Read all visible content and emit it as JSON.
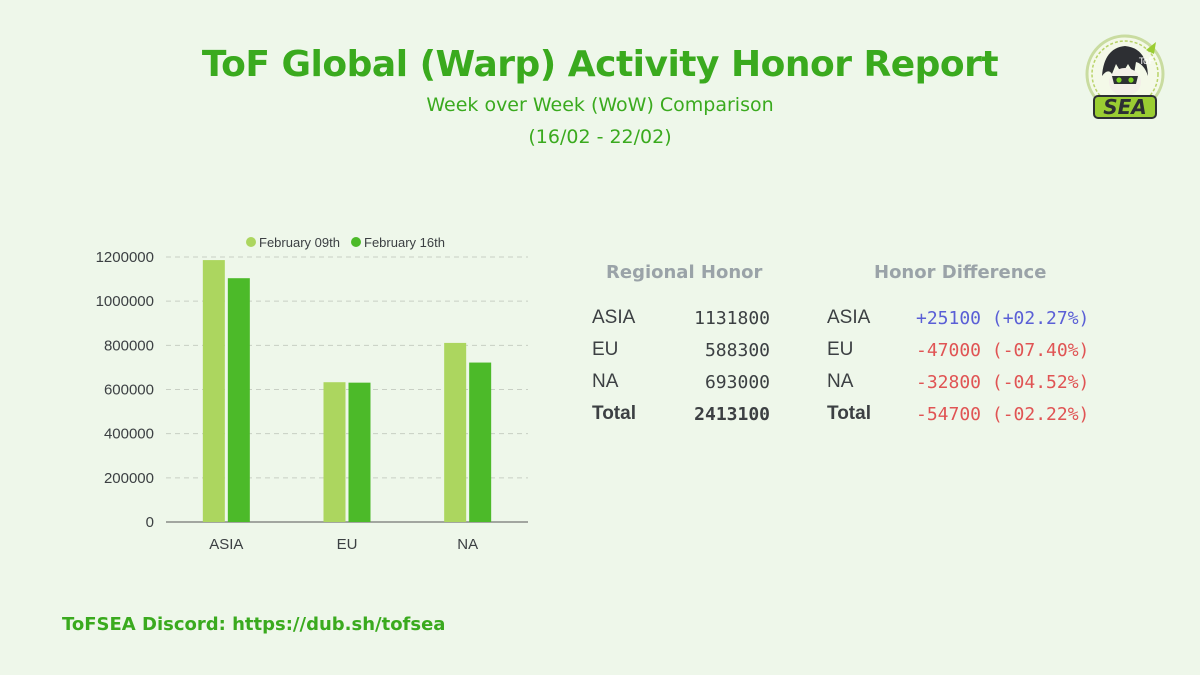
{
  "header": {
    "title": "ToF Global (Warp) Activity Honor Report",
    "subtitle": "Week over Week (WoW) Comparison",
    "date_range": "(16/02 - 22/02)"
  },
  "logo": {
    "text": "SEA",
    "badge_text": "ToF"
  },
  "chart_data": {
    "type": "bar",
    "categories": [
      "ASIA",
      "EU",
      "NA"
    ],
    "series": [
      {
        "name": "February 09th",
        "color": "#acd65f",
        "values": [
          1186000,
          633000,
          811000
        ]
      },
      {
        "name": "February 16th",
        "color": "#4cba29",
        "values": [
          1104000,
          631000,
          722000
        ]
      }
    ],
    "yticks": [
      "1200000",
      "1000000",
      "800000",
      "600000",
      "400000",
      "200000",
      "0"
    ],
    "ylim": [
      0,
      1200000
    ],
    "grid": true,
    "legend": "top-center"
  },
  "regional": {
    "heading": "Regional Honor",
    "rows": [
      {
        "region": "ASIA",
        "value": "1131800"
      },
      {
        "region": "EU",
        "value": "588300"
      },
      {
        "region": "NA",
        "value": "693000"
      },
      {
        "region": "Total",
        "value": "2413100"
      }
    ]
  },
  "difference": {
    "heading": "Honor Difference",
    "rows": [
      {
        "region": "ASIA",
        "value": "+25100 (+02.27%)",
        "color": "#5a5fd6"
      },
      {
        "region": "EU",
        "value": "-47000 (-07.40%)",
        "color": "#e05454"
      },
      {
        "region": "NA",
        "value": "-32800 (-04.52%)",
        "color": "#e05454"
      },
      {
        "region": "Total",
        "value": "-54700 (-02.22%)",
        "color": "#e05454"
      }
    ]
  },
  "footer": {
    "text": "ToFSEA Discord: https://dub.sh/tofsea"
  }
}
